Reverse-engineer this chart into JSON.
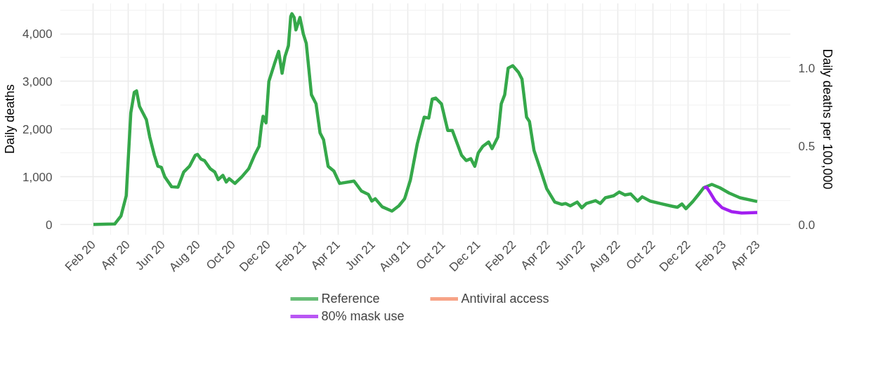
{
  "chart_data": {
    "type": "line",
    "ylabel": "Daily deaths",
    "y2label": "Daily deaths per 100,000",
    "xlim": [
      "2019-12-05",
      "2023-05-28"
    ],
    "xticks": [
      {
        "value": "2020-02",
        "label": "Feb 20"
      },
      {
        "value": "2020-04",
        "label": "Apr 20"
      },
      {
        "value": "2020-06",
        "label": "Jun 20"
      },
      {
        "value": "2020-08",
        "label": "Aug 20"
      },
      {
        "value": "2020-10",
        "label": "Oct 20"
      },
      {
        "value": "2020-12",
        "label": "Dec 20"
      },
      {
        "value": "2021-02",
        "label": "Feb 21"
      },
      {
        "value": "2021-04",
        "label": "Apr 21"
      },
      {
        "value": "2021-06",
        "label": "Jun 21"
      },
      {
        "value": "2021-08",
        "label": "Aug 21"
      },
      {
        "value": "2021-10",
        "label": "Oct 21"
      },
      {
        "value": "2021-12",
        "label": "Dec 21"
      },
      {
        "value": "2022-02",
        "label": "Feb 22"
      },
      {
        "value": "2022-04",
        "label": "Apr 22"
      },
      {
        "value": "2022-06",
        "label": "Jun 22"
      },
      {
        "value": "2022-08",
        "label": "Aug 22"
      },
      {
        "value": "2022-10",
        "label": "Oct 22"
      },
      {
        "value": "2022-12",
        "label": "Dec 22"
      },
      {
        "value": "2023-02",
        "label": "Feb 23"
      },
      {
        "value": "2023-04",
        "label": "Apr 23"
      }
    ],
    "ylim": [
      -221,
      4641
    ],
    "yticks": [
      0,
      {
        "value": 1000,
        "label": "1,000"
      },
      {
        "value": 2000,
        "label": "2,000"
      },
      {
        "value": 3000,
        "label": "3,000"
      },
      {
        "value": 4000,
        "label": "4,000"
      }
    ],
    "y2lim": [
      -0.067,
      1.414
    ],
    "y2ticks": [
      {
        "value": 0,
        "label": "0.0"
      },
      0.5,
      {
        "value": 1,
        "label": "1.0"
      }
    ],
    "grid": true,
    "legend": "bottom",
    "series": [
      {
        "name": "Reference",
        "color": "#35a84a",
        "x": [
          "2020-02-01",
          "2020-03-09",
          "2020-03-20",
          "2020-03-29",
          "2020-04-06",
          "2020-04-12",
          "2020-04-16",
          "2020-04-21",
          "2020-05-03",
          "2020-05-09",
          "2020-05-17",
          "2020-05-23",
          "2020-05-29",
          "2020-06-04",
          "2020-06-16",
          "2020-06-27",
          "2020-07-07",
          "2020-07-17",
          "2020-07-27",
          "2020-07-31",
          "2020-08-06",
          "2020-08-12",
          "2020-08-22",
          "2020-08-30",
          "2020-09-05",
          "2020-09-13",
          "2020-09-19",
          "2020-09-24",
          "2020-10-04",
          "2020-10-16",
          "2020-10-28",
          "2020-11-07",
          "2020-11-15",
          "2020-11-19",
          "2020-11-22",
          "2020-11-27",
          "2020-12-02",
          "2020-12-12",
          "2020-12-19",
          "2020-12-25",
          "2020-12-30",
          "2021-01-05",
          "2021-01-09",
          "2021-01-11",
          "2021-01-15",
          "2021-01-18",
          "2021-01-25",
          "2021-01-31",
          "2021-02-05",
          "2021-02-14",
          "2021-02-22",
          "2021-03-01",
          "2021-03-07",
          "2021-03-15",
          "2021-03-25",
          "2021-04-04",
          "2021-04-29",
          "2021-05-12",
          "2021-05-24",
          "2021-05-30",
          "2021-06-05",
          "2021-06-17",
          "2021-07-04",
          "2021-07-16",
          "2021-07-26",
          "2021-08-05",
          "2021-08-17",
          "2021-08-29",
          "2021-09-06",
          "2021-09-12",
          "2021-09-18",
          "2021-09-28",
          "2021-10-09",
          "2021-10-17",
          "2021-11-02",
          "2021-11-10",
          "2021-11-18",
          "2021-11-25",
          "2021-12-01",
          "2021-12-09",
          "2021-12-19",
          "2021-12-25",
          "2022-01-04",
          "2022-01-10",
          "2022-01-16",
          "2022-01-22",
          "2022-01-30",
          "2022-02-09",
          "2022-02-15",
          "2022-02-23",
          "2022-02-28",
          "2022-03-08",
          "2022-03-20",
          "2022-03-30",
          "2022-04-13",
          "2022-04-25",
          "2022-05-02",
          "2022-05-10",
          "2022-05-22",
          "2022-05-30",
          "2022-06-07",
          "2022-06-23",
          "2022-07-01",
          "2022-07-10",
          "2022-07-24",
          "2022-08-03",
          "2022-08-13",
          "2022-08-23",
          "2022-09-04",
          "2022-09-12",
          "2022-09-26",
          "2022-10-13",
          "2022-11-04",
          "2022-11-12",
          "2022-11-20",
          "2022-11-27",
          "2022-12-09",
          "2022-12-19",
          "2022-12-28",
          "2023-01-11",
          "2023-01-25",
          "2023-02-10",
          "2023-03-01",
          "2023-03-31"
        ],
        "values": [
          0,
          10,
          180,
          600,
          2340,
          2770,
          2800,
          2480,
          2200,
          1830,
          1450,
          1220,
          1200,
          1000,
          790,
          780,
          1100,
          1220,
          1450,
          1470,
          1370,
          1340,
          1170,
          1100,
          940,
          1030,
          890,
          960,
          860,
          1000,
          1170,
          1450,
          1640,
          2060,
          2270,
          2130,
          3000,
          3380,
          3630,
          3170,
          3520,
          3750,
          4360,
          4420,
          4340,
          4080,
          4340,
          3990,
          3800,
          2720,
          2530,
          1920,
          1780,
          1220,
          1120,
          860,
          910,
          700,
          630,
          490,
          540,
          370,
          280,
          390,
          540,
          930,
          1690,
          2250,
          2230,
          2630,
          2650,
          2530,
          1970,
          1970,
          1450,
          1340,
          1380,
          1220,
          1500,
          1640,
          1730,
          1590,
          1830,
          2530,
          2720,
          3280,
          3330,
          3190,
          3050,
          2250,
          2160,
          1550,
          1120,
          750,
          470,
          420,
          440,
          390,
          470,
          350,
          440,
          500,
          440,
          560,
          600,
          680,
          620,
          640,
          490,
          580,
          490,
          440,
          380,
          360,
          430,
          330,
          480,
          630,
          770,
          840,
          770,
          660,
          560,
          480
        ]
      },
      {
        "name": "80% mask use",
        "color": "#a21ff0",
        "x": [
          "2022-12-28",
          "2023-01-02",
          "2023-01-09",
          "2023-01-17",
          "2023-01-29",
          "2023-02-14",
          "2023-03-04",
          "2023-03-31"
        ],
        "values": [
          770,
          780,
          650,
          490,
          350,
          270,
          240,
          250
        ]
      },
      {
        "name": "Antiviral access",
        "color": "#f4845f"
      }
    ]
  }
}
